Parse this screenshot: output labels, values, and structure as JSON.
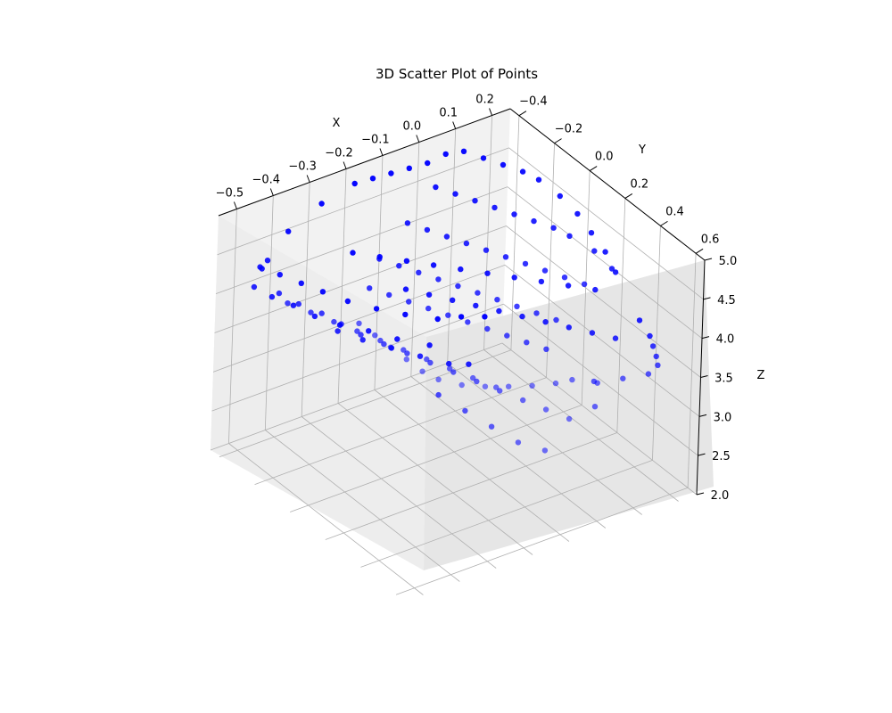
{
  "chart_data": {
    "type": "scatter",
    "subtype": "3d",
    "title": "3D Scatter Plot of Points",
    "xlabel": "X",
    "ylabel": "Y",
    "zlabel": "Z",
    "xlim": [
      -0.55,
      0.25
    ],
    "ylim": [
      -0.45,
      0.65
    ],
    "zlim": [
      2.0,
      5.0
    ],
    "xticks": [
      "−0.5",
      "−0.4",
      "−0.3",
      "−0.2",
      "−0.1",
      "0.0",
      "0.1",
      "0.2"
    ],
    "yticks": [
      "−0.4",
      "−0.2",
      "0.0",
      "0.2",
      "0.4",
      "0.6"
    ],
    "zticks": [
      "2.0",
      "2.5",
      "3.0",
      "3.5",
      "4.0",
      "4.5",
      "5.0"
    ],
    "grid": true,
    "marker_color": "#0000ff",
    "points": [
      [
        -0.5,
        -0.3,
        4.5
      ],
      [
        -0.5,
        -0.2,
        4.6
      ],
      [
        -0.49,
        -0.1,
        4.65
      ],
      [
        -0.48,
        0.0,
        4.7
      ],
      [
        -0.46,
        0.1,
        4.72
      ],
      [
        -0.43,
        0.2,
        4.75
      ],
      [
        -0.4,
        0.3,
        4.8
      ],
      [
        -0.36,
        0.4,
        4.85
      ],
      [
        -0.32,
        0.45,
        4.9
      ],
      [
        -0.28,
        0.5,
        4.92
      ],
      [
        -0.48,
        -0.35,
        4.4
      ],
      [
        -0.46,
        -0.35,
        4.45
      ],
      [
        -0.52,
        -0.3,
        4.3
      ],
      [
        -0.52,
        -0.2,
        4.35
      ],
      [
        -0.51,
        -0.1,
        4.4
      ],
      [
        -0.5,
        0.0,
        4.42
      ],
      [
        -0.48,
        0.1,
        4.45
      ],
      [
        -0.45,
        0.2,
        4.5
      ],
      [
        -0.42,
        0.3,
        4.52
      ],
      [
        -0.38,
        0.4,
        4.55
      ],
      [
        -0.46,
        0.05,
        4.25
      ],
      [
        -0.44,
        0.15,
        4.28
      ],
      [
        -0.41,
        0.25,
        4.3
      ],
      [
        -0.38,
        0.35,
        4.32
      ],
      [
        -0.35,
        0.45,
        4.35
      ],
      [
        -0.32,
        0.5,
        4.38
      ],
      [
        -0.45,
        -0.3,
        4.1
      ],
      [
        -0.42,
        -0.25,
        4.0
      ],
      [
        -0.38,
        -0.2,
        3.9
      ],
      [
        -0.35,
        -0.15,
        3.8
      ],
      [
        -0.32,
        -0.1,
        3.7
      ],
      [
        -0.28,
        -0.05,
        3.6
      ],
      [
        -0.24,
        0.0,
        3.5
      ],
      [
        -0.2,
        0.05,
        3.4
      ],
      [
        -0.16,
        0.1,
        3.3
      ],
      [
        -0.12,
        0.15,
        3.2
      ],
      [
        -0.08,
        0.2,
        3.1
      ],
      [
        -0.04,
        0.25,
        3.0
      ],
      [
        0.0,
        0.3,
        2.9
      ],
      [
        0.04,
        0.35,
        2.8
      ],
      [
        -0.4,
        -0.35,
        3.8
      ],
      [
        -0.36,
        -0.3,
        3.7
      ],
      [
        -0.32,
        -0.25,
        3.6
      ],
      [
        -0.28,
        -0.2,
        3.5
      ],
      [
        -0.24,
        -0.15,
        3.4
      ],
      [
        -0.2,
        -0.1,
        3.3
      ],
      [
        -0.16,
        -0.05,
        3.2
      ],
      [
        -0.12,
        0.0,
        3.1
      ],
      [
        -0.08,
        0.05,
        3.0
      ],
      [
        -0.04,
        0.1,
        2.9
      ],
      [
        -0.2,
        -0.35,
        3.2
      ],
      [
        -0.18,
        -0.3,
        3.1
      ],
      [
        -0.16,
        -0.25,
        3.0
      ],
      [
        -0.14,
        -0.2,
        2.9
      ],
      [
        -0.12,
        -0.15,
        2.8
      ],
      [
        -0.1,
        -0.1,
        2.75
      ],
      [
        -0.06,
        -0.05,
        2.7
      ],
      [
        -0.02,
        0.0,
        2.7
      ],
      [
        0.02,
        0.05,
        2.72
      ],
      [
        0.06,
        0.1,
        2.75
      ],
      [
        0.1,
        0.15,
        2.8
      ],
      [
        0.12,
        0.2,
        2.9
      ],
      [
        0.14,
        0.3,
        3.0
      ],
      [
        0.16,
        0.4,
        3.2
      ],
      [
        0.18,
        0.5,
        3.4
      ],
      [
        0.18,
        0.55,
        3.6
      ],
      [
        0.16,
        0.58,
        3.8
      ],
      [
        0.14,
        0.6,
        4.0
      ],
      [
        0.12,
        0.62,
        4.2
      ],
      [
        0.1,
        0.6,
        4.4
      ],
      [
        -0.25,
        -0.2,
        4.0
      ],
      [
        -0.22,
        -0.15,
        3.95
      ],
      [
        -0.19,
        -0.1,
        3.9
      ],
      [
        -0.16,
        -0.05,
        3.85
      ],
      [
        -0.13,
        0.0,
        3.8
      ],
      [
        -0.1,
        0.05,
        3.75
      ],
      [
        -0.07,
        0.1,
        3.7
      ],
      [
        -0.04,
        0.15,
        3.65
      ],
      [
        -0.01,
        0.2,
        3.6
      ],
      [
        0.02,
        0.25,
        3.55
      ],
      [
        -0.2,
        -0.25,
        4.2
      ],
      [
        -0.17,
        -0.2,
        4.15
      ],
      [
        -0.14,
        -0.15,
        4.1
      ],
      [
        -0.11,
        -0.1,
        4.05
      ],
      [
        -0.08,
        -0.05,
        4.0
      ],
      [
        -0.05,
        0.0,
        3.95
      ],
      [
        -0.02,
        0.05,
        3.9
      ],
      [
        0.01,
        0.1,
        3.85
      ],
      [
        0.04,
        0.15,
        3.8
      ],
      [
        0.07,
        0.2,
        3.75
      ],
      [
        -0.1,
        -0.3,
        4.4
      ],
      [
        -0.07,
        -0.25,
        4.35
      ],
      [
        -0.04,
        -0.2,
        4.3
      ],
      [
        -0.01,
        -0.15,
        4.25
      ],
      [
        0.02,
        -0.1,
        4.2
      ],
      [
        0.05,
        -0.05,
        4.15
      ],
      [
        0.08,
        0.0,
        4.1
      ],
      [
        0.11,
        0.05,
        4.05
      ],
      [
        0.14,
        0.1,
        4.0
      ],
      [
        0.17,
        0.15,
        3.95
      ],
      [
        0.0,
        -0.35,
        4.6
      ],
      [
        0.03,
        -0.3,
        4.55
      ],
      [
        0.06,
        -0.25,
        4.5
      ],
      [
        0.09,
        -0.2,
        4.45
      ],
      [
        0.12,
        -0.15,
        4.4
      ],
      [
        0.15,
        -0.1,
        4.35
      ],
      [
        0.18,
        -0.05,
        4.3
      ],
      [
        0.2,
        0.0,
        4.25
      ],
      [
        0.22,
        0.1,
        4.2
      ],
      [
        0.22,
        0.2,
        4.15
      ],
      [
        0.1,
        -0.4,
        4.8
      ],
      [
        0.13,
        -0.35,
        4.75
      ],
      [
        0.16,
        -0.3,
        4.7
      ],
      [
        0.19,
        -0.25,
        4.65
      ],
      [
        0.21,
        -0.2,
        4.6
      ],
      [
        0.22,
        -0.1,
        4.55
      ],
      [
        0.22,
        0.0,
        4.5
      ],
      [
        0.21,
        0.1,
        4.45
      ],
      [
        0.2,
        0.2,
        4.4
      ],
      [
        0.18,
        0.3,
        4.35
      ],
      [
        -0.3,
        0.1,
        4.6
      ],
      [
        -0.26,
        0.15,
        4.55
      ],
      [
        -0.22,
        0.2,
        4.5
      ],
      [
        -0.18,
        0.25,
        4.45
      ],
      [
        -0.14,
        0.3,
        4.4
      ],
      [
        -0.1,
        0.35,
        4.35
      ],
      [
        -0.06,
        0.4,
        4.3
      ],
      [
        -0.02,
        0.45,
        4.25
      ],
      [
        0.02,
        0.5,
        4.2
      ],
      [
        0.06,
        0.55,
        4.15
      ],
      [
        -0.35,
        -0.1,
        4.8
      ],
      [
        -0.3,
        -0.05,
        4.75
      ],
      [
        -0.25,
        0.0,
        4.7
      ],
      [
        -0.2,
        0.05,
        4.65
      ],
      [
        -0.15,
        0.1,
        4.6
      ],
      [
        -0.1,
        0.15,
        4.55
      ],
      [
        -0.05,
        0.2,
        4.5
      ],
      [
        0.0,
        0.25,
        4.45
      ],
      [
        0.05,
        0.3,
        4.4
      ],
      [
        0.1,
        0.35,
        4.35
      ],
      [
        -0.2,
        -0.4,
        4.9
      ],
      [
        -0.15,
        -0.4,
        4.88
      ],
      [
        -0.1,
        -0.4,
        4.86
      ],
      [
        -0.05,
        -0.4,
        4.84
      ],
      [
        0.0,
        -0.4,
        4.82
      ],
      [
        0.05,
        -0.4,
        4.85
      ],
      [
        -0.3,
        -0.38,
        4.85
      ],
      [
        -0.4,
        -0.36,
        4.7
      ],
      [
        0.08,
        0.4,
        3.3
      ],
      [
        0.06,
        0.45,
        3.1
      ],
      [
        -0.3,
        0.3,
        3.6
      ],
      [
        -0.25,
        0.35,
        3.4
      ],
      [
        -0.2,
        0.4,
        3.2
      ],
      [
        -0.15,
        0.45,
        3.0
      ],
      [
        -0.1,
        0.5,
        2.9
      ]
    ]
  }
}
